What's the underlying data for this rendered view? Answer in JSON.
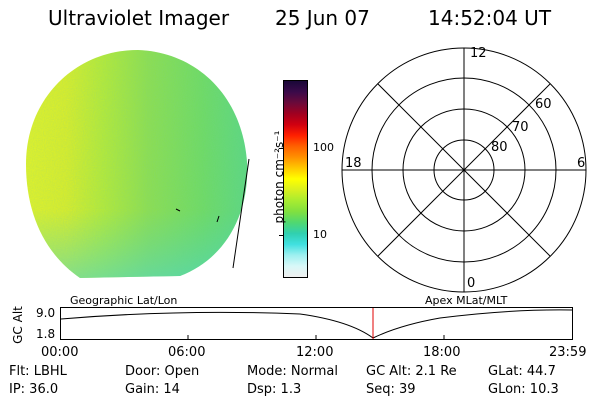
{
  "header": {
    "instrument": "Ultraviolet Imager",
    "date": "25 Jun 07",
    "time": "14:52:04 UT"
  },
  "colorbar": {
    "unit_label": "photon cm⁻²s⁻¹",
    "ticks": [
      "100",
      "10"
    ],
    "stops": [
      "#1a0838",
      "#3b0a4a",
      "#6a0a3a",
      "#a00020",
      "#d00010",
      "#ff2000",
      "#ff6000",
      "#ff9000",
      "#ffc800",
      "#ffff00",
      "#d8f020",
      "#a8ec30",
      "#80e040",
      "#50d870",
      "#30d0b0",
      "#40e0e0",
      "#9ef0f0",
      "#d8f8f8",
      "#f0f0f0"
    ]
  },
  "polar": {
    "labels": {
      "top": "12",
      "bottom": "0",
      "left": "18",
      "right": "6"
    },
    "rings": [
      "60",
      "70",
      "80"
    ]
  },
  "strip": {
    "left_label": "Geographic Lat/Lon",
    "right_label": "Apex MLat/MLT",
    "y_axis_title": "GC Alt",
    "y_ticks": [
      "9.0",
      "1.8"
    ],
    "x_ticks": [
      "00:00",
      "06:00",
      "12:00",
      "18:00",
      "23:59"
    ],
    "current_time_marker": "14:52",
    "marker_color": "#e00000"
  },
  "status": {
    "filter": "Flt: LBHL",
    "ip": "IP: 36.0",
    "door": "Door: Open",
    "gain": "Gain: 14",
    "mode": "Mode: Normal",
    "dsp": "Dsp:     1.3",
    "gc_alt": "GC Alt: 2.1 Re",
    "seq": "Seq: 39",
    "glat": "GLat:   44.7",
    "glon": "GLon:   10.3"
  }
}
